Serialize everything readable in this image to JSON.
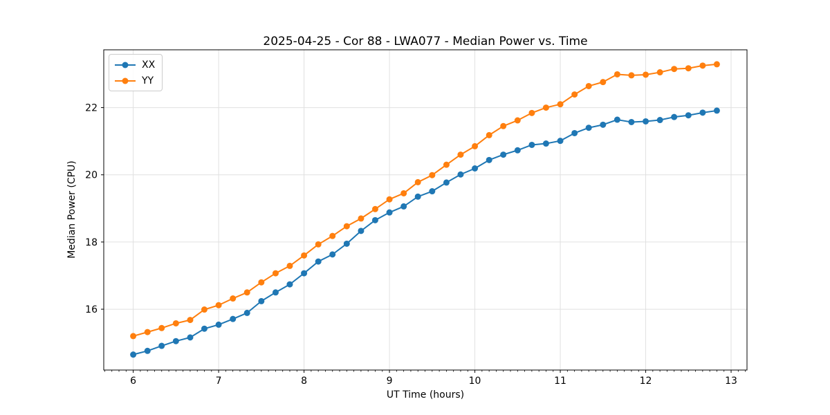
{
  "chart_data": {
    "type": "line",
    "title": "2025-04-25 - Cor 88 - LWA077 - Median Power vs. Time",
    "xlabel": "UT Time (hours)",
    "ylabel": "Median Power (CPU)",
    "xlim": [
      5.655,
      13.186
    ],
    "ylim": [
      14.19,
      23.72
    ],
    "xticks": [
      6,
      7,
      8,
      9,
      10,
      11,
      12,
      13
    ],
    "yticks": [
      16,
      18,
      20,
      22
    ],
    "x_minor_step_hours": 0.0833,
    "grid": true,
    "legend_position": "upper left",
    "background_color": "#ffffff",
    "grid_color": "#e0e0e0",
    "x": [
      6.0,
      6.167,
      6.333,
      6.5,
      6.667,
      6.833,
      7.0,
      7.167,
      7.333,
      7.5,
      7.667,
      7.833,
      8.0,
      8.167,
      8.333,
      8.5,
      8.667,
      8.833,
      9.0,
      9.167,
      9.333,
      9.5,
      9.667,
      9.833,
      10.0,
      10.167,
      10.333,
      10.5,
      10.667,
      10.833,
      11.0,
      11.167,
      11.333,
      11.5,
      11.667,
      11.833,
      12.0,
      12.167,
      12.333,
      12.5,
      12.667,
      12.833
    ],
    "series": [
      {
        "name": "XX",
        "color": "#1f77b4",
        "values": [
          14.65,
          14.76,
          14.91,
          15.05,
          15.16,
          15.42,
          15.54,
          15.71,
          15.89,
          16.24,
          16.5,
          16.74,
          17.07,
          17.42,
          17.63,
          17.95,
          18.33,
          18.65,
          18.88,
          19.06,
          19.35,
          19.51,
          19.77,
          20.01,
          20.19,
          20.44,
          20.6,
          20.73,
          20.89,
          20.93,
          21.01,
          21.24,
          21.4,
          21.49,
          21.64,
          21.57,
          21.59,
          21.63,
          21.72,
          21.77,
          21.85,
          21.91
        ]
      },
      {
        "name": "YY",
        "color": "#ff7f0e",
        "values": [
          15.2,
          15.32,
          15.44,
          15.58,
          15.68,
          15.99,
          16.12,
          16.32,
          16.5,
          16.8,
          17.07,
          17.29,
          17.6,
          17.93,
          18.18,
          18.47,
          18.7,
          18.98,
          19.27,
          19.45,
          19.78,
          19.99,
          20.3,
          20.6,
          20.85,
          21.18,
          21.45,
          21.62,
          21.84,
          22.0,
          22.1,
          22.39,
          22.64,
          22.76,
          22.99,
          22.96,
          22.98,
          23.05,
          23.15,
          23.17,
          23.25,
          23.29
        ]
      }
    ]
  }
}
